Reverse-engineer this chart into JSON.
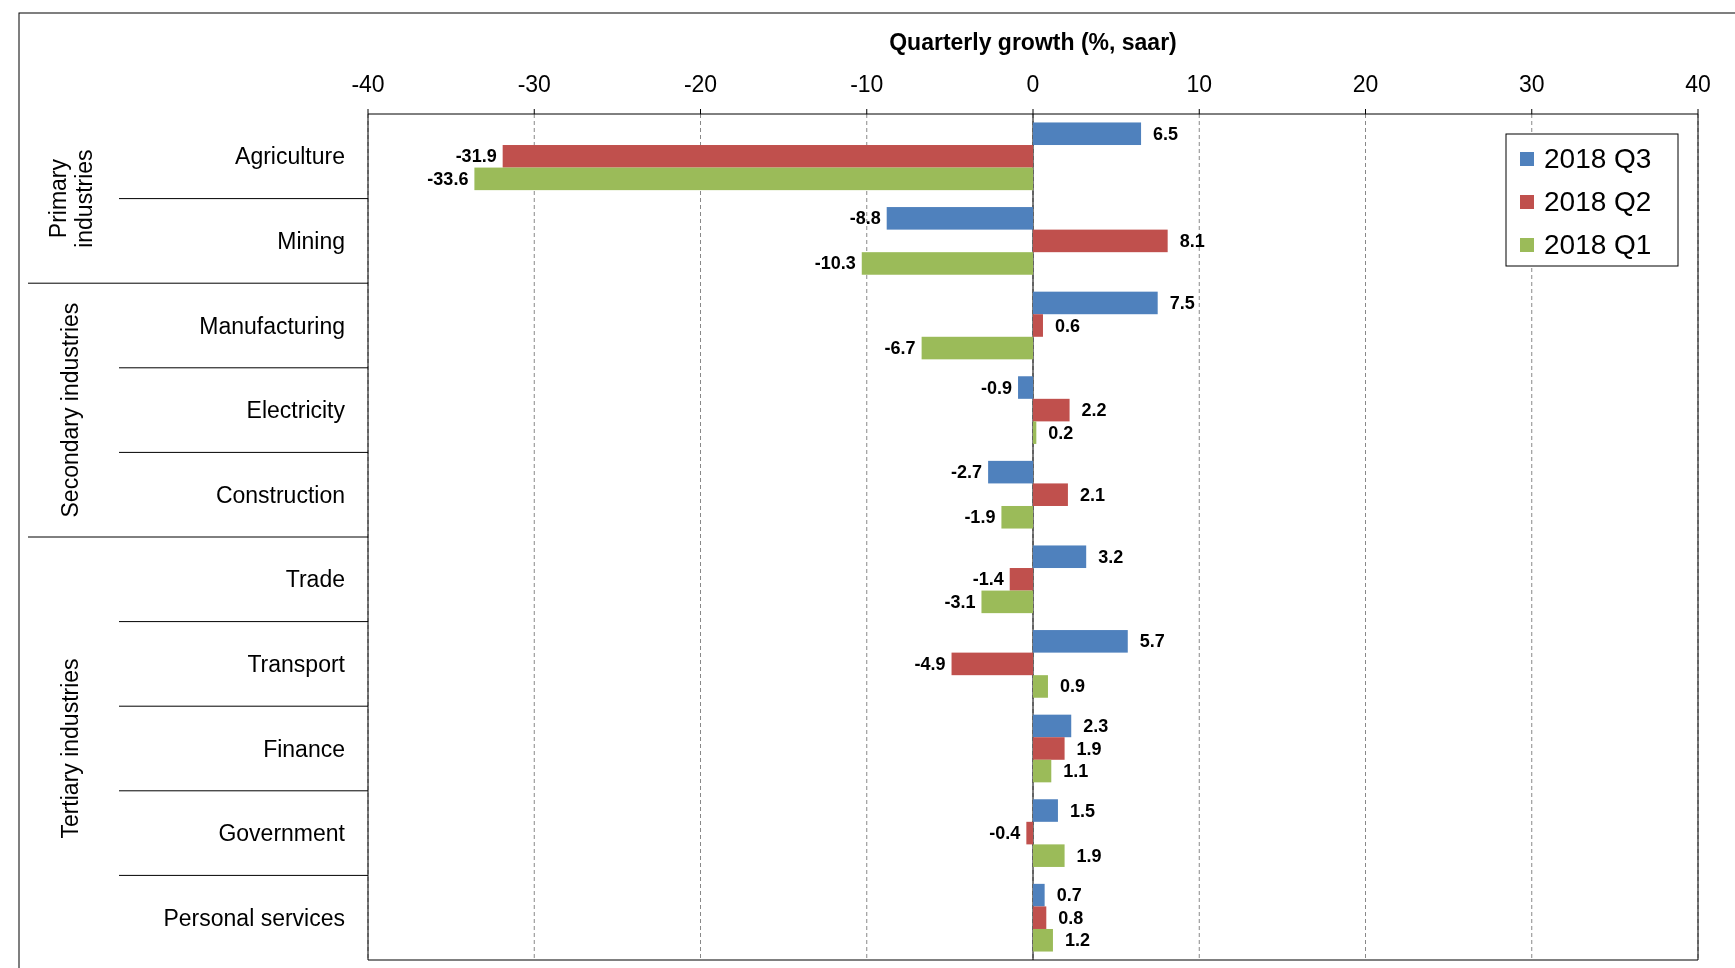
{
  "chart_data": {
    "type": "bar",
    "orientation": "horizontal",
    "xlabel": "Quarterly growth (%, saar)",
    "categories": [
      "Agriculture",
      "Mining",
      "Manufacturing",
      "Electricity",
      "Construction",
      "Trade",
      "Transport",
      "Finance",
      "Government",
      "Personal services"
    ],
    "series": [
      {
        "name": "2018 Q3",
        "color": "#4f81bd",
        "values": [
          6.5,
          -8.8,
          7.5,
          -0.9,
          -2.7,
          3.2,
          5.7,
          2.3,
          1.5,
          0.7
        ]
      },
      {
        "name": "2018 Q2",
        "color": "#c0504d",
        "values": [
          -31.9,
          8.1,
          0.6,
          2.2,
          2.1,
          -1.4,
          -4.9,
          1.9,
          -0.4,
          0.8
        ]
      },
      {
        "name": "2018 Q1",
        "color": "#9bbb59",
        "values": [
          -33.6,
          -10.3,
          -6.7,
          0.2,
          -1.9,
          -3.1,
          0.9,
          1.1,
          1.9,
          1.2
        ]
      }
    ],
    "xlim": [
      -40,
      40
    ],
    "xticks": [
      -40,
      -30,
      -20,
      -10,
      0,
      10,
      20,
      30,
      40
    ],
    "grid": "x",
    "legend": "top right",
    "data_labels": true,
    "annotations": [
      "Primary industries",
      "Secondary industries",
      "Tertiary industries"
    ]
  }
}
